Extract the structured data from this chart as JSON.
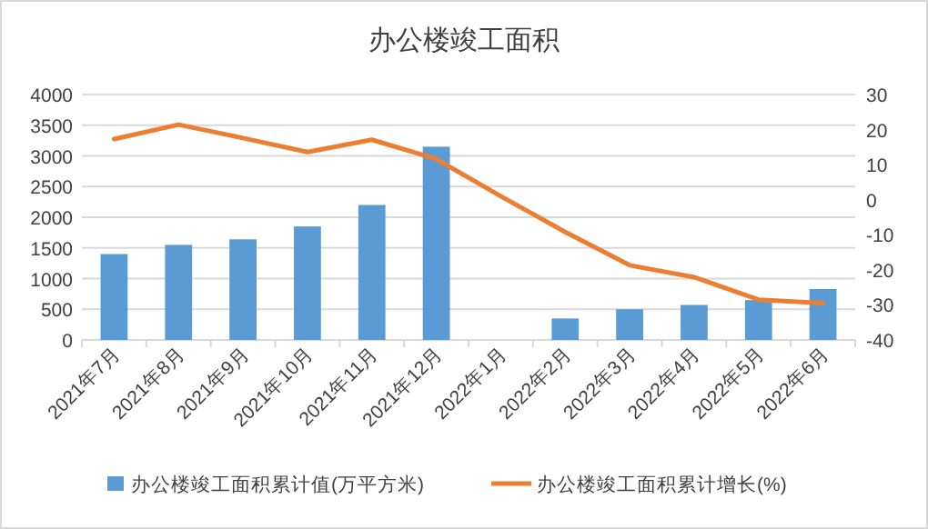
{
  "chart_data": {
    "type": "bar",
    "title": "办公楼竣工面积",
    "categories": [
      "2021年7月",
      "2021年8月",
      "2021年9月",
      "2021年10月",
      "2021年11月",
      "2021年12月",
      "2022年1月",
      "2022年2月",
      "2022年3月",
      "2022年4月",
      "2022年5月",
      "2022年6月"
    ],
    "series": [
      {
        "name": "办公楼竣工面积累计值(万平方米)",
        "color": "#5b9bd5",
        "values": [
          1400,
          1550,
          1640,
          1850,
          2200,
          3150,
          null,
          350,
          500,
          570,
          650,
          830
        ]
      },
      {
        "name": "办公楼竣工面积累计增长(%)",
        "type": "line",
        "axis": "y2",
        "color": "#ed7d31",
        "values": [
          17.3,
          21.4,
          17.6,
          13.6,
          17.1,
          11.6,
          1,
          -9.2,
          -18.7,
          -22.1,
          -28.5,
          -29.5
        ]
      }
    ],
    "ylim": [
      0,
      4000
    ],
    "yticks": [
      0,
      500,
      1000,
      1500,
      2000,
      2500,
      3000,
      3500,
      4000
    ],
    "y2lim": [
      -40,
      30
    ],
    "y2ticks": [
      -40,
      -30,
      -20,
      -10,
      0,
      10,
      20,
      30
    ],
    "grid": "y",
    "legend": "bottom",
    "marker": "none"
  }
}
